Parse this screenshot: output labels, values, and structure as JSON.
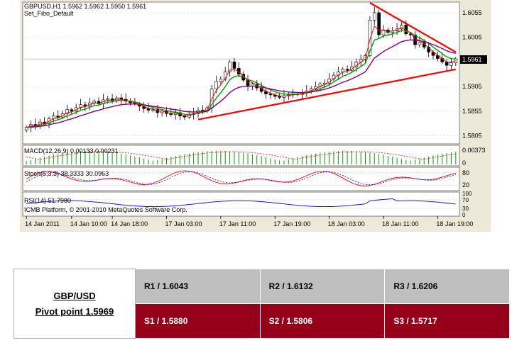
{
  "header": {
    "symbol_line": "GBPUSD,H1  1.5962 1.5962 1.5950 1.5961",
    "template": "Set_Fibo_Default"
  },
  "price_tag": "1.5961",
  "indicators": {
    "macd_label": "MACD(12,26,9) 0.00133 0.00231",
    "stoch_label": "Stoch(5,3,3) 38.3333 30.0963",
    "rsi_label": "RSI(14) 51.7980",
    "copyright": "ICMB Platform, © 2001-2010 MetaQuotes Software Corp."
  },
  "chart_data": {
    "type": "candlestick",
    "symbol": "GBPUSD",
    "timeframe": "H1",
    "ylim": [
      1.579,
      1.6075
    ],
    "price_ticks": [
      "1.6055",
      "1.6005",
      "1.5905",
      "1.5855",
      "1.5805"
    ],
    "price_tick_values": [
      1.6055,
      1.6005,
      1.5905,
      1.5855,
      1.5805
    ],
    "current_price": 1.5961,
    "x_ticks": [
      "14 Jan 2011",
      "14 Jan 10:00",
      "14 Jan 18:00",
      "17 Jan 03:00",
      "17 Jan 11:00",
      "17 Jan 19:00",
      "18 Jan 03:00",
      "18 Jan 11:00",
      "18 Jan 19:00"
    ],
    "closes": [
      1.5822,
      1.5828,
      1.5825,
      1.5833,
      1.583,
      1.584,
      1.5845,
      1.5843,
      1.585,
      1.5858,
      1.5855,
      1.5862,
      1.5868,
      1.5865,
      1.5872,
      1.5875,
      1.587,
      1.5878,
      1.588,
      1.5876,
      1.5882,
      1.5879,
      1.5875,
      1.5872,
      1.587,
      1.5865,
      1.586,
      1.5857,
      1.5858,
      1.5852,
      1.5855,
      1.585,
      1.5848,
      1.5852,
      1.5845,
      1.5843,
      1.5848,
      1.585,
      1.5857,
      1.5855,
      1.5862,
      1.59,
      1.5915,
      1.592,
      1.5935,
      1.5955,
      1.5942,
      1.593,
      1.5918,
      1.5906,
      1.591,
      1.5902,
      1.5895,
      1.589,
      1.5888,
      1.5885,
      1.5883,
      1.5886,
      1.5888,
      1.589,
      1.5889,
      1.5892,
      1.5896,
      1.59,
      1.5905,
      1.591,
      1.5912,
      1.592,
      1.5928,
      1.5935,
      1.594,
      1.5938,
      1.5945,
      1.5955,
      1.596,
      1.5968,
      1.604,
      1.6055,
      1.601,
      1.602,
      1.6015,
      1.6018,
      1.6022,
      1.603,
      1.6012,
      1.601,
      1.599,
      1.5995,
      1.5985,
      1.5975,
      1.5968,
      1.5962,
      1.5955,
      1.5948,
      1.5953,
      1.5961
    ],
    "ma_fast_start": 1.5825,
    "ma_fast_end": 1.5978,
    "ma_slow_start": 1.5818,
    "ma_slow_end": 1.5968,
    "trendlines": [
      {
        "name": "upper",
        "from": [
          76,
          1.6075
        ],
        "to": [
          95,
          1.5975
        ]
      },
      {
        "name": "lower",
        "from": [
          38,
          1.5838
        ],
        "to": [
          95,
          1.594
        ]
      }
    ],
    "macd": {
      "label": "MACD(12,26,9)",
      "main": 0.00133,
      "signal": 0.00231,
      "scale_max": 0.00373,
      "ticks": [
        "0.00373",
        "0"
      ]
    },
    "stochastic": {
      "label": "Stoch(5,3,3)",
      "main": 38.3333,
      "signal": 30.0963,
      "ticks": [
        "80",
        "20"
      ]
    },
    "rsi": {
      "label": "RSI(14)",
      "value": 51.798,
      "ticks": [
        "100",
        "70",
        "30",
        "0"
      ]
    }
  },
  "pivot": {
    "pair": "GBP/USD",
    "pivot_label": "Pivot point 1.5969",
    "resistance": [
      "R1 / 1.6043",
      "R2 / 1.6132",
      "R3 / 1.6206"
    ],
    "support": [
      "S1 / 1.5880",
      "S2 / 1.5806",
      "S3 / 1.5717"
    ]
  }
}
